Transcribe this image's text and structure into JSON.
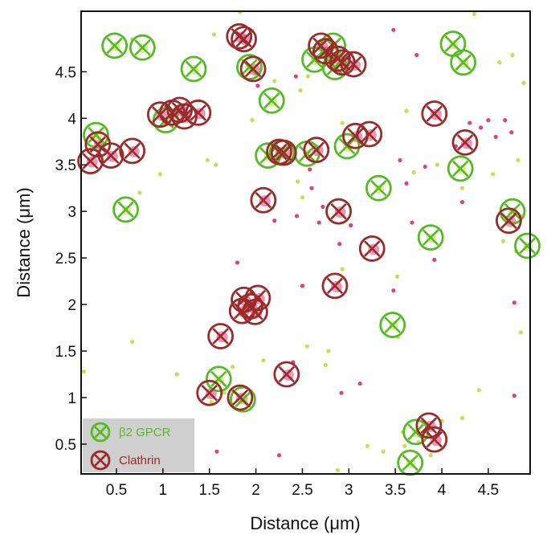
{
  "chart_data": {
    "type": "scatter",
    "title": "",
    "xlabel": "Distance (μm)",
    "ylabel": "Distance (μm)",
    "xlim": [
      0.12,
      4.95
    ],
    "ylim": [
      0.18,
      5.15
    ],
    "xticks": [
      0.5,
      1,
      1.5,
      2,
      2.5,
      3,
      3.5,
      4,
      4.5
    ],
    "xtick_labels": [
      "0.5",
      "1",
      "1.5",
      "2",
      "2.5",
      "3",
      "3.5",
      "4",
      "4.5"
    ],
    "yticks": [
      0.5,
      1,
      1.5,
      2,
      2.5,
      3,
      3.5,
      4,
      4.5
    ],
    "ytick_labels": [
      "0.5",
      "1",
      "1.5",
      "2",
      "2.5",
      "3",
      "3.5",
      "4",
      "4.5"
    ],
    "grid": false,
    "legend_position": "bottom-left",
    "colors": {
      "gpcr": "#55bb22",
      "clathrin": "#9b2a2a",
      "gpcr_dots": "#c9dc55",
      "clathrin_dots": "#e0407e",
      "legend_bg": "#cfcfcf"
    },
    "series": [
      {
        "name": "β2 GPCR",
        "marker": "circle-x",
        "points": [
          [
            0.48,
            4.78
          ],
          [
            0.78,
            4.76
          ],
          [
            1.33,
            4.53
          ],
          [
            1.93,
            4.55
          ],
          [
            2.17,
            4.19
          ],
          [
            2.63,
            4.63
          ],
          [
            2.83,
            4.78
          ],
          [
            2.85,
            4.55
          ],
          [
            4.12,
            4.8
          ],
          [
            4.23,
            4.6
          ],
          [
            0.28,
            3.82
          ],
          [
            1.03,
            3.98
          ],
          [
            2.13,
            3.6
          ],
          [
            2.28,
            3.63
          ],
          [
            2.55,
            3.62
          ],
          [
            2.98,
            3.7
          ],
          [
            4.2,
            3.46
          ],
          [
            0.6,
            3.02
          ],
          [
            3.32,
            3.25
          ],
          [
            4.76,
            3.0
          ],
          [
            4.92,
            2.63
          ],
          [
            3.88,
            2.72
          ],
          [
            3.47,
            1.78
          ],
          [
            1.6,
            1.2
          ],
          [
            1.86,
            0.98
          ],
          [
            3.66,
            0.3
          ],
          [
            3.72,
            0.63
          ]
        ]
      },
      {
        "name": "Clathrin",
        "marker": "circle-x",
        "points": [
          [
            1.82,
            4.88
          ],
          [
            1.87,
            4.85
          ],
          [
            1.97,
            4.53
          ],
          [
            2.7,
            4.78
          ],
          [
            2.75,
            4.72
          ],
          [
            2.88,
            4.64
          ],
          [
            2.93,
            4.6
          ],
          [
            3.05,
            4.58
          ],
          [
            0.97,
            4.04
          ],
          [
            1.1,
            4.06
          ],
          [
            1.18,
            4.09
          ],
          [
            1.23,
            4.02
          ],
          [
            1.38,
            4.06
          ],
          [
            3.92,
            4.05
          ],
          [
            0.22,
            3.54
          ],
          [
            0.3,
            3.72
          ],
          [
            0.44,
            3.6
          ],
          [
            0.67,
            3.65
          ],
          [
            2.25,
            3.64
          ],
          [
            2.3,
            3.63
          ],
          [
            2.65,
            3.66
          ],
          [
            3.07,
            3.81
          ],
          [
            3.22,
            3.83
          ],
          [
            4.25,
            3.74
          ],
          [
            2.08,
            3.12
          ],
          [
            2.89,
            3.0
          ],
          [
            4.72,
            2.9
          ],
          [
            3.25,
            2.6
          ],
          [
            2.85,
            2.2
          ],
          [
            1.87,
            2.05
          ],
          [
            1.94,
            1.98
          ],
          [
            2.02,
            2.07
          ],
          [
            1.85,
            1.93
          ],
          [
            1.99,
            1.92
          ],
          [
            1.62,
            1.66
          ],
          [
            2.33,
            1.25
          ],
          [
            1.5,
            1.05
          ],
          [
            1.83,
            1.0
          ],
          [
            3.86,
            0.7
          ],
          [
            3.92,
            0.55
          ]
        ]
      }
    ],
    "small_dots_gpcr": [
      [
        1.83,
        5.14
      ],
      [
        4.35,
        5.12
      ],
      [
        0.67,
        4.85
      ],
      [
        1.55,
        4.9
      ],
      [
        2.48,
        4.3
      ],
      [
        2.56,
        4.45
      ],
      [
        2.2,
        4.4
      ],
      [
        1.96,
        3.98
      ],
      [
        2.93,
        3.95
      ],
      [
        3.62,
        4.08
      ],
      [
        0.75,
        3.2
      ],
      [
        0.97,
        3.4
      ],
      [
        1.48,
        3.55
      ],
      [
        1.57,
        3.5
      ],
      [
        2.45,
        3.32
      ],
      [
        2.5,
        3.15
      ],
      [
        3.7,
        3.42
      ],
      [
        3.95,
        3.5
      ],
      [
        4.55,
        3.4
      ],
      [
        4.82,
        3.55
      ],
      [
        4.22,
        3.25
      ],
      [
        4.88,
        4.38
      ],
      [
        4.62,
        4.6
      ],
      [
        4.76,
        4.68
      ],
      [
        4.8,
        2.57
      ],
      [
        4.86,
        2.95
      ],
      [
        4.66,
        2.68
      ],
      [
        3.53,
        1.65
      ],
      [
        3.52,
        2.3
      ],
      [
        2.93,
        2.38
      ],
      [
        2.78,
        1.5
      ],
      [
        2.55,
        1.55
      ],
      [
        2.08,
        1.4
      ],
      [
        2.75,
        1.35
      ],
      [
        1.75,
        1.33
      ],
      [
        1.66,
        1.05
      ],
      [
        1.52,
        0.95
      ],
      [
        1.15,
        1.25
      ],
      [
        0.67,
        1.6
      ],
      [
        3.2,
        0.48
      ],
      [
        3.37,
        0.42
      ],
      [
        3.75,
        0.52
      ],
      [
        3.58,
        0.63
      ],
      [
        3.6,
        0.48
      ],
      [
        3.88,
        0.38
      ],
      [
        4.0,
        0.75
      ],
      [
        4.22,
        0.78
      ],
      [
        2.88,
        0.22
      ],
      [
        0.18,
        0.4
      ],
      [
        0.15,
        1.28
      ],
      [
        1.22,
        0.75
      ],
      [
        4.4,
        1.08
      ],
      [
        4.85,
        1.7
      ]
    ],
    "small_dots_clathrin": [
      [
        3.48,
        4.95
      ],
      [
        2.43,
        4.45
      ],
      [
        3.73,
        4.68
      ],
      [
        2.02,
        4.35
      ],
      [
        4.68,
        3.98
      ],
      [
        4.75,
        3.85
      ],
      [
        4.5,
        3.98
      ],
      [
        4.42,
        3.9
      ],
      [
        4.58,
        3.8
      ],
      [
        4.3,
        3.95
      ],
      [
        4.15,
        3.7
      ],
      [
        2.58,
        3.45
      ],
      [
        2.6,
        3.25
      ],
      [
        2.44,
        2.95
      ],
      [
        2.68,
        2.88
      ],
      [
        2.2,
        2.9
      ],
      [
        2.72,
        3.05
      ],
      [
        1.8,
        2.45
      ],
      [
        2.9,
        2.65
      ],
      [
        3.02,
        2.85
      ],
      [
        3.48,
        2.15
      ],
      [
        2.5,
        2.2
      ],
      [
        3.92,
        2.48
      ],
      [
        4.78,
        2.02
      ],
      [
        3.55,
        3.55
      ],
      [
        4.78,
        1.02
      ],
      [
        3.62,
        3.3
      ],
      [
        3.82,
        3.48
      ],
      [
        3.68,
        2.88
      ],
      [
        4.22,
        3.1
      ],
      [
        2.92,
        1.05
      ],
      [
        2.4,
        1.38
      ],
      [
        3.12,
        1.15
      ],
      [
        1.58,
        0.42
      ],
      [
        2.25,
        0.38
      ]
    ],
    "legend": {
      "items": [
        {
          "label": "β2 GPCR",
          "color_key": "gpcr"
        },
        {
          "label": "Clathrin",
          "color_key": "clathrin"
        }
      ]
    }
  }
}
